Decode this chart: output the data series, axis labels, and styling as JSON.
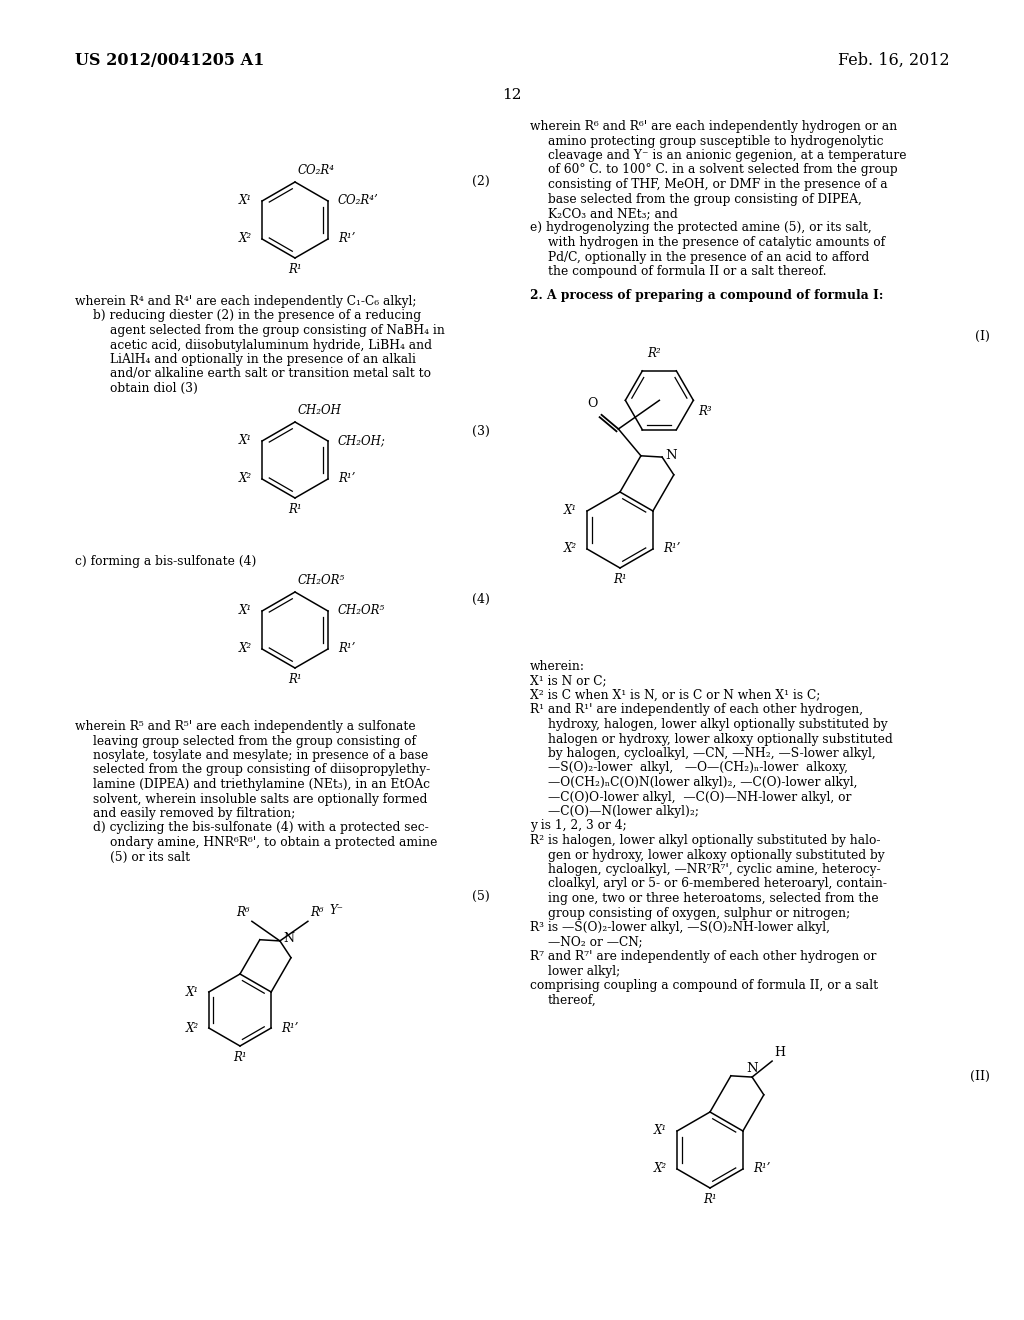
{
  "background_color": "#ffffff",
  "header_left": "US 2012/0041205 A1",
  "header_right": "Feb. 16, 2012",
  "page_number": "12",
  "body_fontsize": 8.8,
  "header_fontsize": 11.5,
  "struct_label_fontsize": 9.0,
  "subst_fontsize": 8.5
}
